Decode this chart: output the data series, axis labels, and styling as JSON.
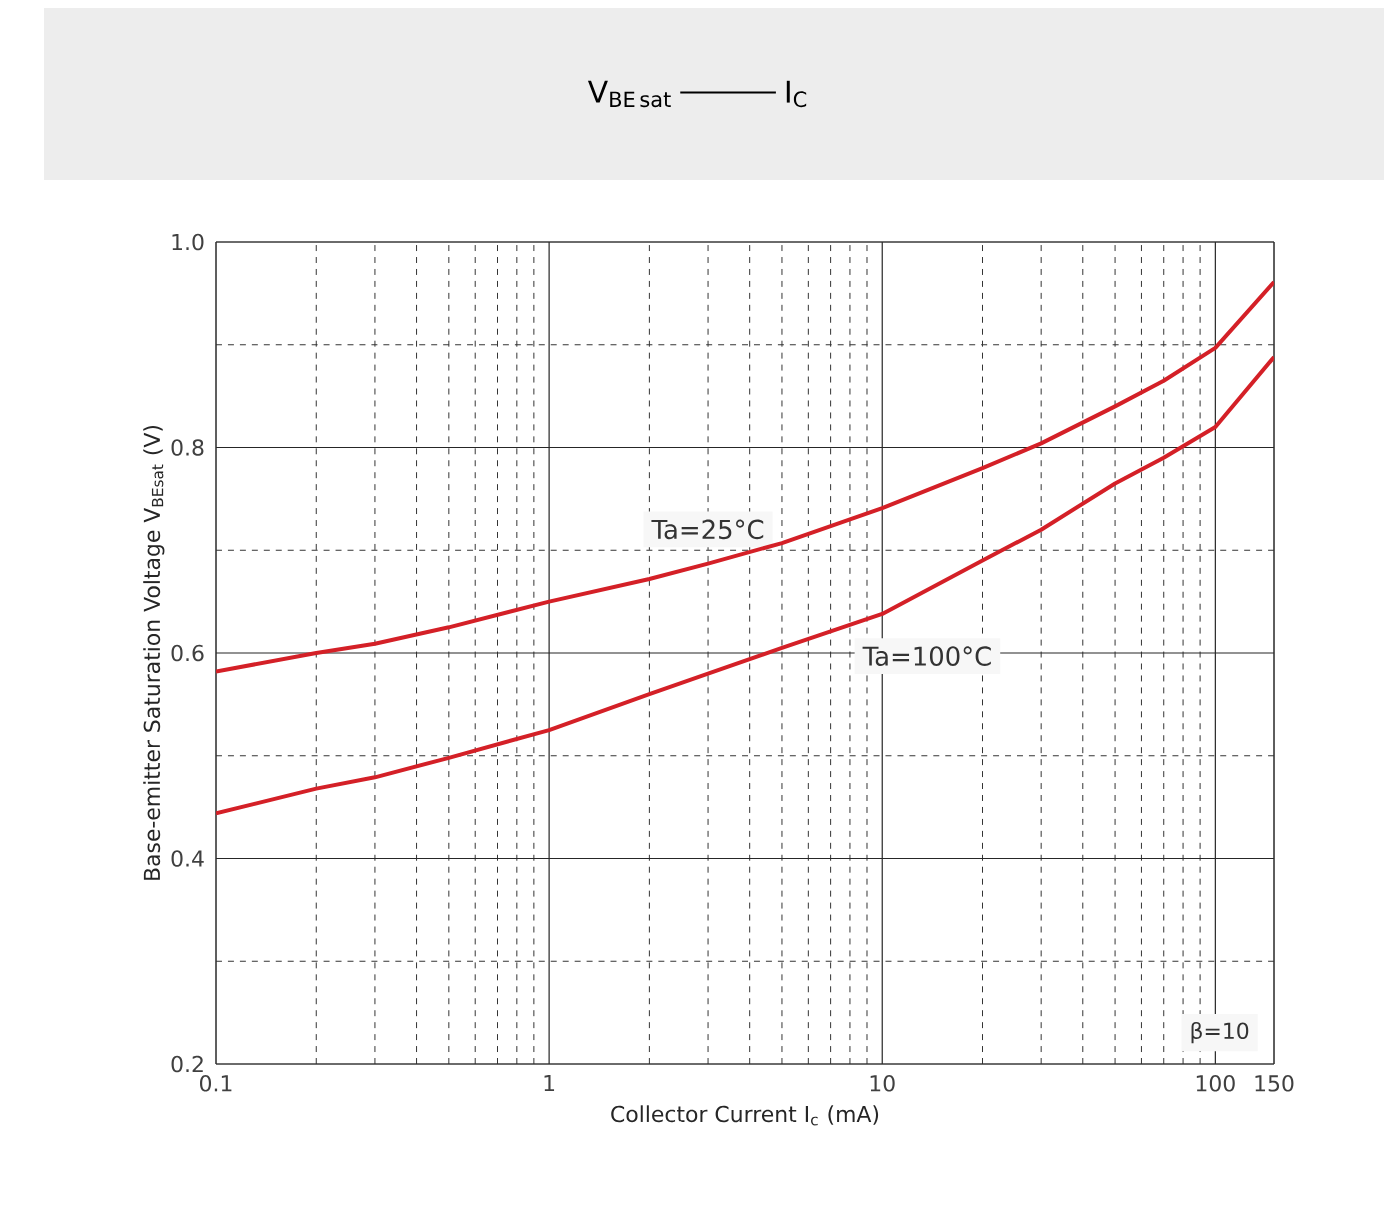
{
  "chart_data": {
    "type": "line",
    "title": "\\mathrm{V}_{\\mathrm{BE\\,sat}}\\;\\rule[0.3em]{3.2em}{1pt}\\;\\mathrm{I}_{\\mathrm{C}}",
    "xlabel": "Collector Current  I$_{c}$ (mA)",
    "ylabel": "Base-emitter Saturation Voltage  V$_{BEsat}$ (V)",
    "log": "x",
    "grid": true,
    "marker": "none",
    "line_style": "solid",
    "xlim": [
      0.1,
      150
    ],
    "xticks": [
      0.1,
      1,
      10,
      100,
      150
    ],
    "ylim": [
      0.2,
      1.0
    ],
    "yticks": [
      0.2,
      0.4,
      0.6,
      0.8,
      {
        "value": 1.0,
        "label": "1.0"
      }
    ],
    "x": [
      0.1,
      0.2,
      0.3,
      0.5,
      1,
      2,
      3,
      5,
      10,
      20,
      30,
      50,
      70,
      100,
      150
    ],
    "series": [
      {
        "name": "Ta=25°C",
        "color": "#d42027",
        "values": [
          0.582,
          0.6,
          0.609,
          0.625,
          0.65,
          0.672,
          0.687,
          0.707,
          0.741,
          0.78,
          0.804,
          0.84,
          0.865,
          0.897,
          0.961
        ]
      },
      {
        "name": "Ta=100°C",
        "color": "#d42027",
        "values": [
          0.444,
          0.468,
          0.479,
          0.498,
          0.525,
          0.56,
          0.58,
          0.605,
          0.638,
          0.69,
          0.72,
          0.765,
          0.79,
          0.82,
          0.888
        ]
      }
    ],
    "annotations": [
      "β=10"
    ]
  }
}
